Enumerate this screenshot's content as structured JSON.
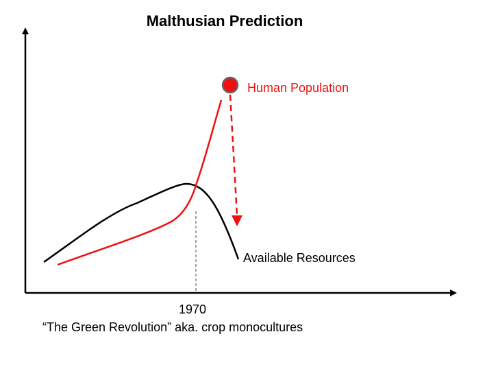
{
  "title": "Malthusian Prediction",
  "population_label": "Human Population",
  "resources_label": "Available Resources",
  "year_label": "1970",
  "caption": "“The Green Revolution” aka. crop monocultures",
  "colors": {
    "population": "#ee1111",
    "resources": "#000000",
    "marker_fill": "#ee1111",
    "marker_stroke": "#666666",
    "axes": "#000000",
    "guide": "#666666"
  }
}
